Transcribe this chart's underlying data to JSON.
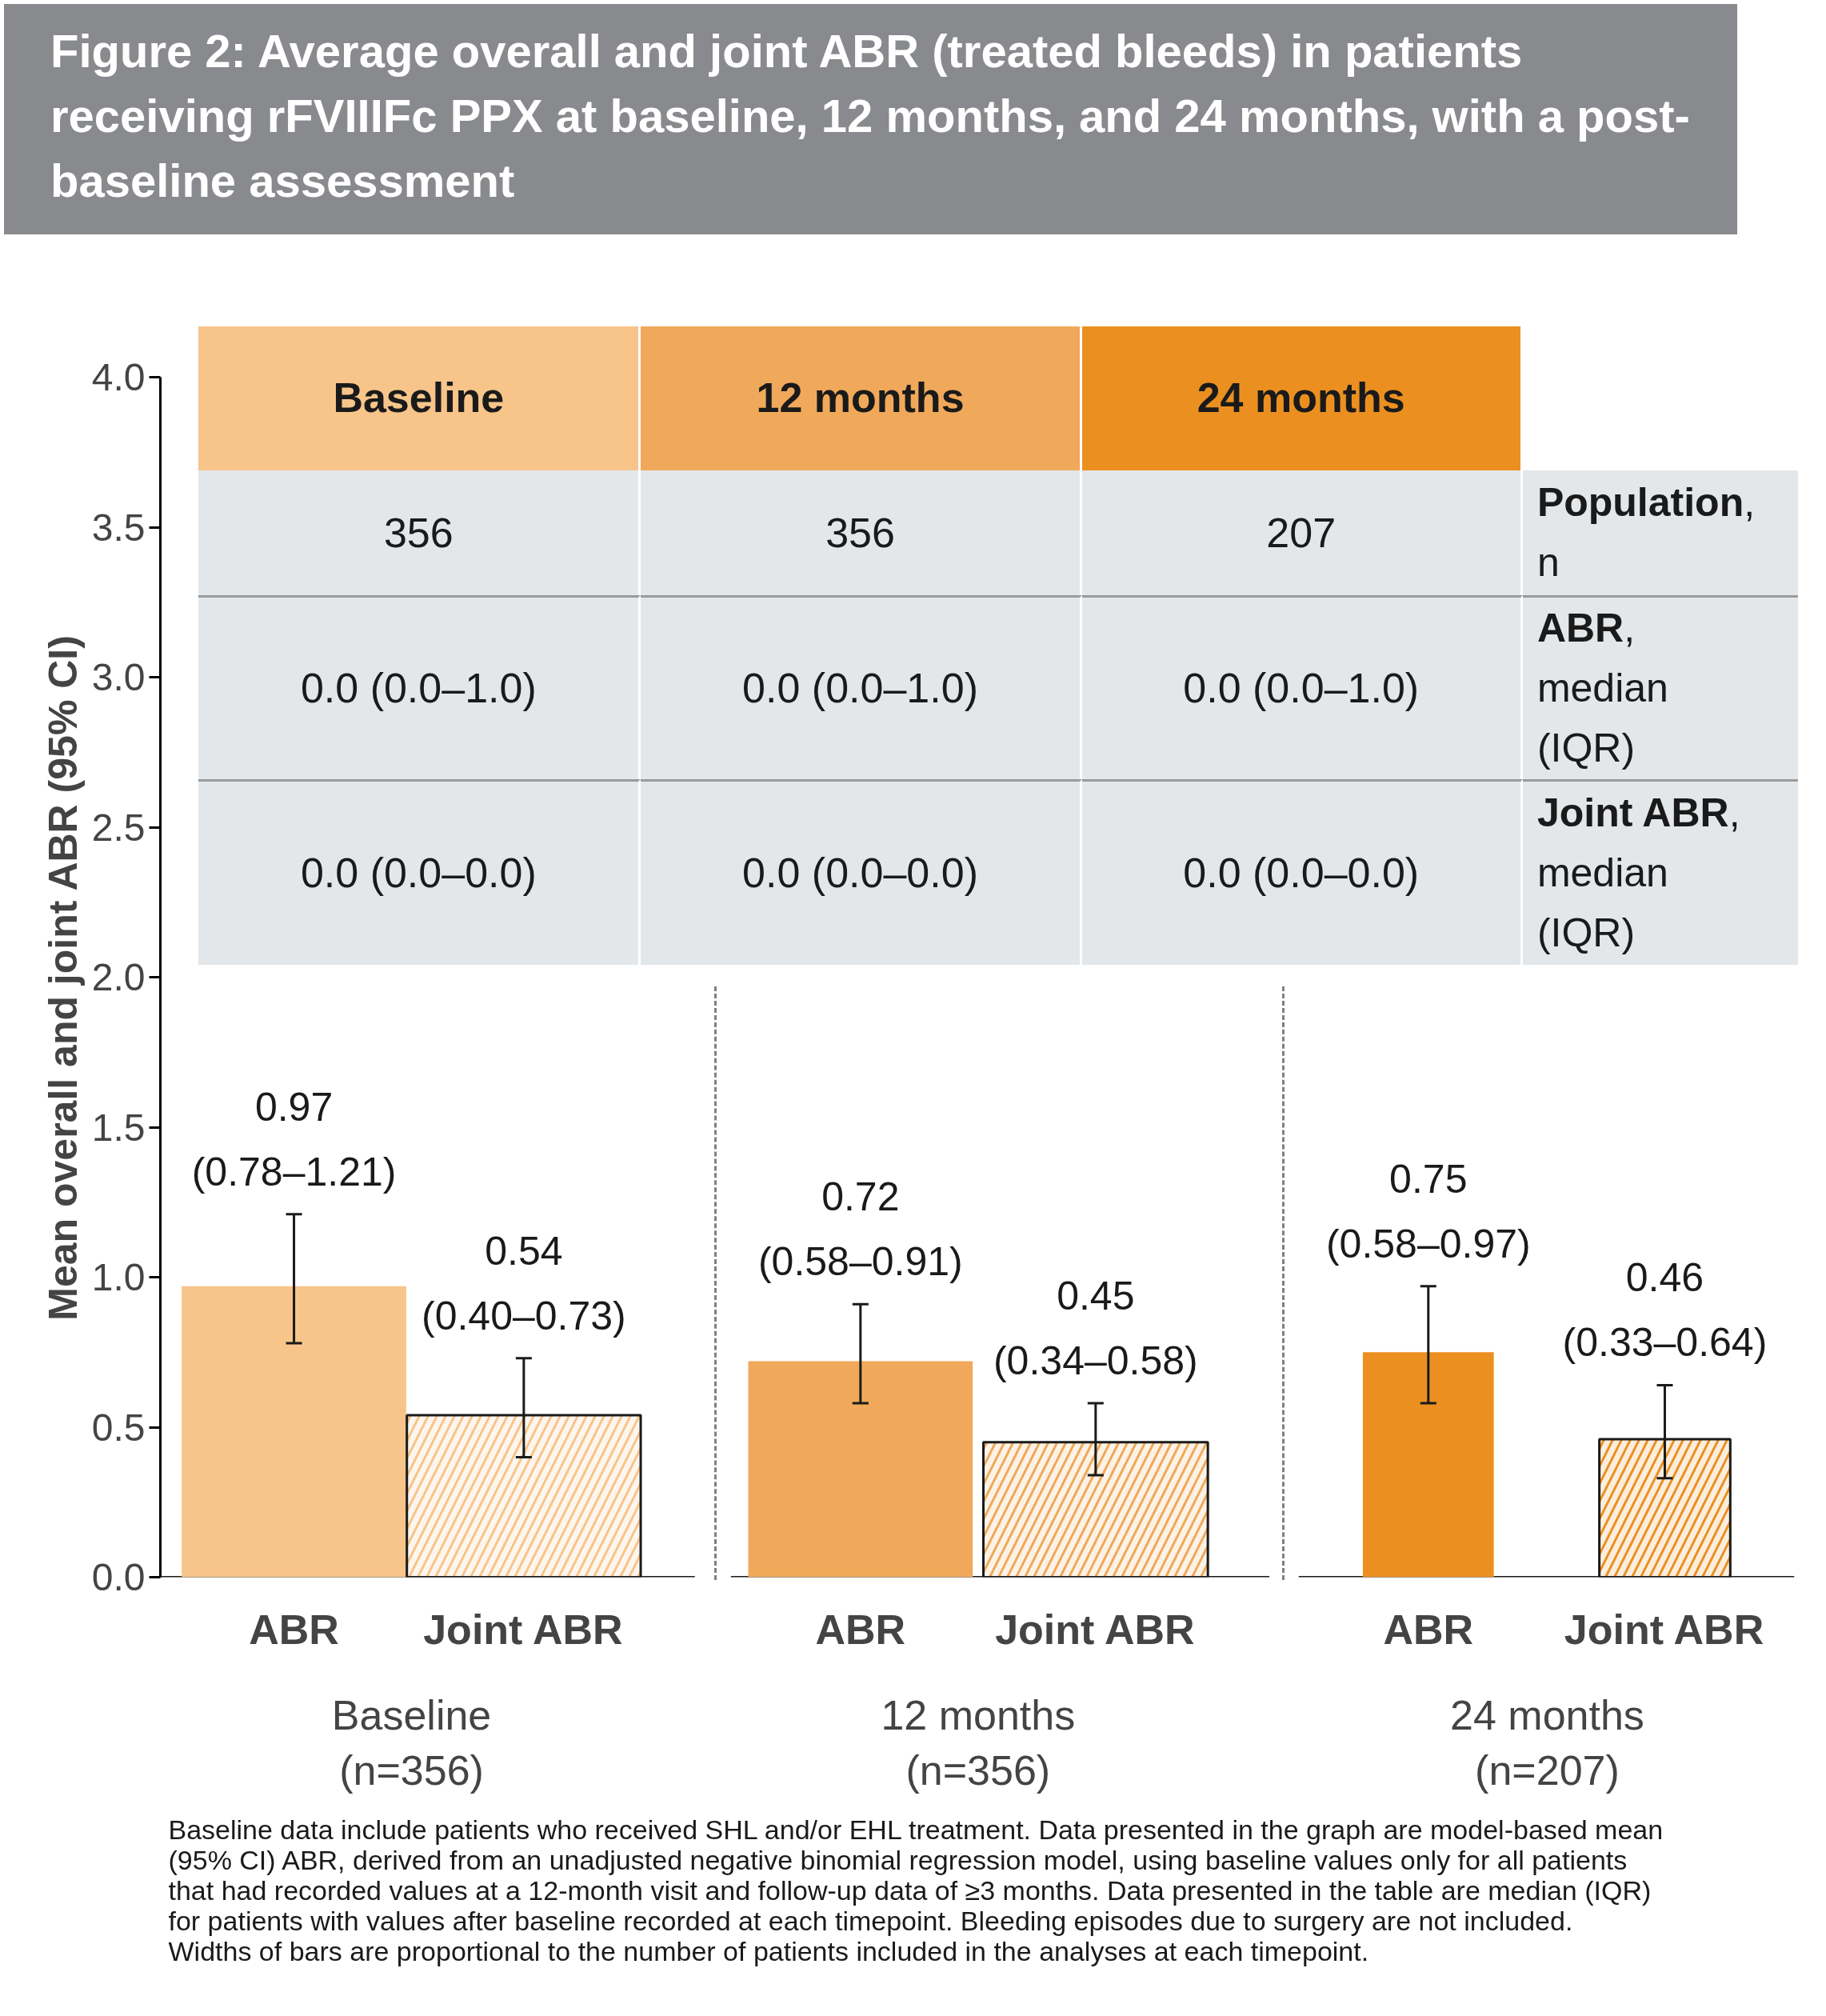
{
  "chart_data": {
    "type": "bar",
    "title": "Figure 2: Average overall and joint ABR (treated bleeds) in patients receiving rFVIIIFc PPX at baseline, 12 months, and 24 months, with a post-baseline assessment",
    "ylabel": "Mean overall and joint ABR (95% CI)",
    "categories": [
      "ABR",
      "Joint ABR",
      "ABR",
      "Joint ABR",
      "ABR",
      "Joint ABR"
    ],
    "series": [
      {
        "type": "bar",
        "colors": [
          "#f7c48a",
          null,
          "#f0a95a",
          null,
          "#eb9020",
          null
        ],
        "values": [
          0.97,
          null,
          0.72,
          null,
          0.75,
          null
        ],
        "errors": [
          [
            0.78,
            1.21
          ],
          null,
          [
            0.58,
            0.91
          ],
          null,
          [
            0.58,
            0.97
          ],
          null
        ],
        "value_labels": [
          "0.97 (0.78–1.21)",
          null,
          "0.72 (0.58–0.91)",
          null,
          "0.75 (0.58–0.97)",
          null
        ]
      },
      {
        "type": "bar",
        "colors": [
          null,
          "#f7c48a",
          null,
          "#f0a95a",
          null,
          "#eb9020"
        ],
        "values": [
          null,
          0.54,
          null,
          0.45,
          null,
          0.46
        ],
        "errors": [
          null,
          [
            0.4,
            0.73
          ],
          null,
          [
            0.34,
            0.58
          ],
          null,
          [
            0.33,
            0.64
          ]
        ],
        "value_labels": [
          null,
          "0.54 (0.40–0.73)",
          null,
          "0.45 (0.34–0.58)",
          null,
          "0.46 (0.33–0.64)"
        ]
      }
    ],
    "ylim": [
      0,
      4
    ],
    "yticks": [
      {
        "value": 0,
        "label": "0.0"
      },
      {
        "value": 0.5,
        "label": "0.5"
      },
      {
        "value": 1,
        "label": "1.0"
      },
      {
        "value": 1.5,
        "label": "1.5"
      },
      {
        "value": 2,
        "label": "2.0"
      },
      {
        "value": 2.5,
        "label": "2.5"
      },
      {
        "value": 3,
        "label": "3.0"
      },
      {
        "value": 3.5,
        "label": "3.5"
      },
      {
        "value": 4,
        "label": "4.0"
      }
    ],
    "annotations": [
      "Baseline (n=356)",
      "12 months (n=356)",
      "24 months (n=207)",
      "Baseline",
      "12 months",
      "24 months",
      "Population, n",
      "ABR, median (IQR)",
      "Joint ABR, median (IQR)",
      "356",
      "356",
      "207",
      "0.0 (0.0–1.0)",
      "0.0 (0.0–1.0)",
      "0.0 (0.0–1.0)",
      "0.0 (0.0–0.0)",
      "0.0 (0.0–0.0)",
      "0.0 (0.0–0.0)",
      "Baseline data include patients who received SHL and/or EHL treatment. Data presented in the graph are model-based mean (95% CI) ABR, derived from an unadjusted negative binomial regression model, using baseline values only for all patients that had recorded values at a 12-month visit and follow-up data of ≥3 months. Data presented in the table are median (IQR) for patients with values after baseline recorded at each timepoint. Bleeding episodes due to surgery are not included. Widths of bars are proportional to the number of patients included in the analyses at each timepoint."
    ]
  }
}
